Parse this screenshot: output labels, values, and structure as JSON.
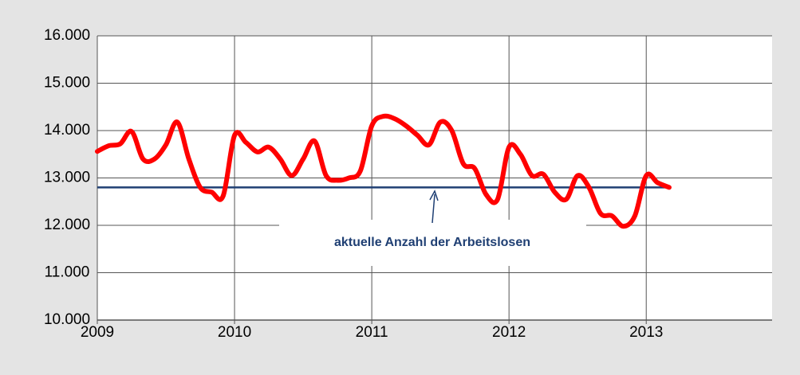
{
  "chart_data": {
    "type": "line",
    "x": [
      2009,
      2009.083,
      2009.167,
      2009.25,
      2009.333,
      2009.417,
      2009.5,
      2009.583,
      2009.667,
      2009.75,
      2009.833,
      2009.917,
      2010,
      2010.083,
      2010.167,
      2010.25,
      2010.333,
      2010.417,
      2010.5,
      2010.583,
      2010.667,
      2010.75,
      2010.833,
      2010.917,
      2011,
      2011.083,
      2011.167,
      2011.25,
      2011.333,
      2011.417,
      2011.5,
      2011.583,
      2011.667,
      2011.75,
      2011.833,
      2011.917,
      2012,
      2012.083,
      2012.167,
      2012.25,
      2012.333,
      2012.417,
      2012.5,
      2012.583,
      2012.667,
      2012.75,
      2012.833,
      2012.917,
      2013,
      2013.083,
      2013.167
    ],
    "series": [
      {
        "color": "#ff0000",
        "values": [
          13560,
          13680,
          13720,
          13980,
          13400,
          13400,
          13700,
          14180,
          13400,
          12800,
          12700,
          12620,
          13900,
          13750,
          13550,
          13650,
          13400,
          13050,
          13400,
          13780,
          13050,
          12950,
          13000,
          13150,
          14100,
          14300,
          14250,
          14100,
          13900,
          13700,
          14180,
          14000,
          13300,
          13200,
          12650,
          12550,
          13650,
          13500,
          13050,
          13080,
          12700,
          12550,
          13050,
          12800,
          12250,
          12200,
          11980,
          12200,
          13050,
          12900,
          12800
        ]
      }
    ],
    "reference_line": {
      "value": 12800,
      "color": "#1f3f73",
      "label": "aktuelle Anzahl der Arbeitslosen"
    },
    "xlim": [
      2009,
      2013.917
    ],
    "xticks": [
      2009,
      2010,
      2011,
      2012,
      2013
    ],
    "ylim": [
      10000,
      16000
    ],
    "yticks": [
      {
        "value": 10000,
        "label": "10.000"
      },
      {
        "value": 11000,
        "label": "11.000"
      },
      {
        "value": 12000,
        "label": "12.000"
      },
      {
        "value": 13000,
        "label": "13.000"
      },
      {
        "value": 14000,
        "label": "14.000"
      },
      {
        "value": 15000,
        "label": "15.000"
      },
      {
        "value": 16000,
        "label": "16.000"
      }
    ],
    "grid": true
  }
}
